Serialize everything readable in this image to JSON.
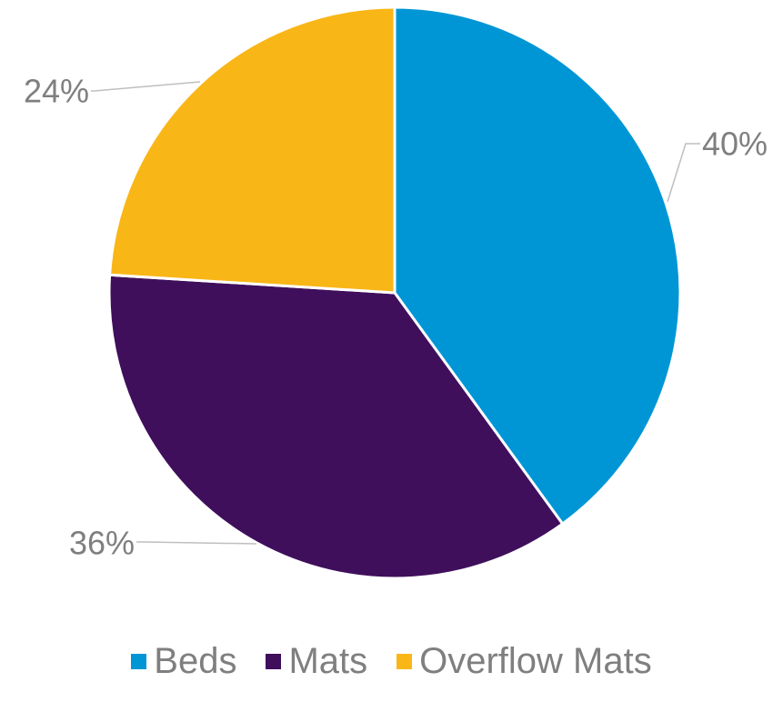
{
  "chart_data": {
    "type": "pie",
    "categories": [
      "Beds",
      "Mats",
      "Overflow Mats"
    ],
    "values": [
      40,
      36,
      24
    ],
    "data_labels": [
      "40%",
      "36%",
      "24%"
    ],
    "colors": [
      "#0096d6",
      "#3f0f5c",
      "#f9b617"
    ],
    "start_angle": "12 o'clock, clockwise",
    "legend": {
      "position": "bottom",
      "entries": [
        "Beds",
        "Mats",
        "Overflow Mats"
      ]
    },
    "title": ""
  }
}
